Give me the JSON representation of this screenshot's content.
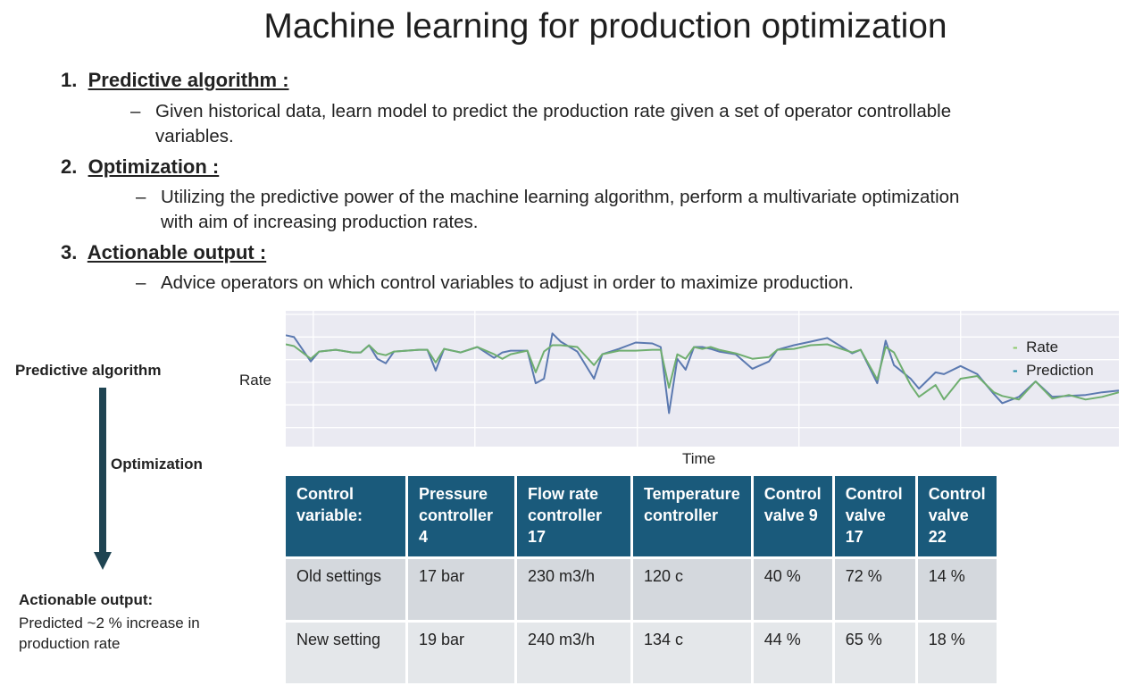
{
  "title": "Machine learning for production optimization",
  "steps": [
    {
      "num": "1.",
      "heading": "Predictive algorithm :",
      "text_line1": "Given historical data, learn model to predict the production rate given a set of operator controllable",
      "text_line2": "variables."
    },
    {
      "num": "2.",
      "heading": "Optimization :",
      "text_line1": "Utilizing the predictive power of the machine learning algorithm, perform a multivariate optimization",
      "text_line2": "with aim of increasing production rates."
    },
    {
      "num": "3.",
      "heading": "Actionable output :",
      "text_line1": "Advice operators on which control variables to adjust in order to maximize production.",
      "text_line2": ""
    }
  ],
  "dash": "–",
  "flow": {
    "top_label": "Predictive algorithm",
    "middle_label": "Optimization",
    "bottom_label": "Actionable output:",
    "bottom_text_line1": "Predicted ~2 % increase in",
    "bottom_text_line2": "production rate",
    "arrow_color": "#1f4452"
  },
  "chart_data": {
    "type": "line",
    "title": "",
    "xlabel": "Time",
    "ylabel": "Rate",
    "ylim": [
      0,
      6
    ],
    "xlim": [
      0,
      100
    ],
    "grid": true,
    "legend": "top-right",
    "x": [
      0,
      1,
      3,
      4,
      6,
      8,
      9,
      10,
      11,
      12,
      13,
      16,
      17,
      18,
      19,
      21,
      23,
      25,
      26,
      27,
      29,
      30,
      31,
      32,
      33,
      35,
      37,
      38,
      40,
      42,
      44,
      45,
      46,
      47,
      48,
      49,
      50,
      51,
      52,
      54,
      56,
      58,
      59,
      61,
      63,
      65,
      68,
      69,
      71,
      72,
      73,
      75,
      76,
      78,
      79,
      81,
      83,
      85,
      86,
      88,
      90,
      92,
      94,
      96,
      98,
      100
    ],
    "series": [
      {
        "name": "Rate",
        "color": "#6fae6f",
        "legend_color": "#8cc96a",
        "values": [
          4.52,
          4.44,
          3.88,
          4.2,
          4.28,
          4.16,
          4.16,
          4.48,
          4.12,
          4.04,
          4.2,
          4.28,
          4.28,
          3.72,
          4.32,
          4.16,
          4.4,
          4.08,
          3.88,
          4.08,
          4.24,
          3.28,
          4.2,
          4.48,
          4.48,
          4.4,
          3.6,
          4.08,
          4.24,
          4.24,
          4.28,
          4.28,
          2.6,
          4.08,
          3.88,
          4.4,
          4.32,
          4.4,
          4.28,
          4.12,
          3.88,
          3.96,
          4.28,
          4.32,
          4.48,
          4.52,
          4.16,
          4.28,
          2.96,
          4.4,
          4.16,
          2.72,
          2.2,
          2.72,
          2.08,
          3.0,
          3.12,
          2.4,
          2.24,
          2.08,
          2.88,
          2.12,
          2.28,
          2.08,
          2.2,
          2.4
        ]
      },
      {
        "name": "Prediction",
        "color": "#5b79b0",
        "legend_color": "#1f8fa8",
        "values": [
          4.92,
          4.84,
          3.76,
          4.2,
          4.28,
          4.16,
          4.16,
          4.48,
          3.88,
          3.68,
          4.2,
          4.28,
          4.28,
          3.36,
          4.32,
          4.16,
          4.4,
          3.92,
          4.16,
          4.24,
          4.24,
          2.8,
          3.0,
          5.0,
          4.64,
          4.2,
          3.0,
          4.08,
          4.32,
          4.6,
          4.56,
          4.4,
          1.48,
          3.88,
          3.4,
          4.4,
          4.4,
          4.32,
          4.2,
          4.08,
          3.44,
          3.76,
          4.28,
          4.48,
          4.64,
          4.8,
          4.12,
          4.28,
          2.8,
          4.68,
          3.6,
          3.0,
          2.56,
          3.28,
          3.2,
          3.56,
          3.2,
          2.32,
          1.92,
          2.2,
          2.88,
          2.2,
          2.24,
          2.28,
          2.4,
          2.48
        ]
      }
    ]
  },
  "table": {
    "headers": [
      [
        "Control",
        "variable:"
      ],
      [
        "Pressure",
        "controller 4"
      ],
      [
        "Flow rate",
        "controller 17"
      ],
      [
        "Temperature",
        "controller"
      ],
      [
        "Control",
        "valve 9"
      ],
      [
        "Control",
        "valve 17"
      ],
      [
        "Control",
        "valve 22"
      ]
    ],
    "rows": [
      [
        "Old settings",
        "17 bar",
        "230 m3/h",
        "120 c",
        "40 %",
        "72 %",
        "14 %"
      ],
      [
        "New setting",
        "19 bar",
        "240 m3/h",
        "134 c",
        "44 %",
        "65 %",
        "18 %"
      ]
    ]
  }
}
